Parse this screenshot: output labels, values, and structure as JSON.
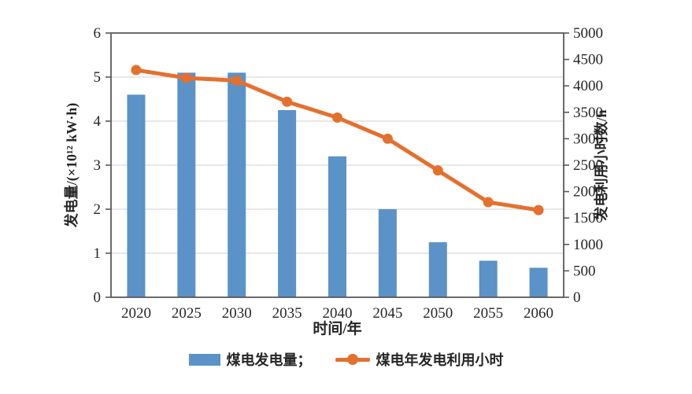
{
  "chart_data": {
    "type": "combo",
    "title": "",
    "categories": [
      "2020",
      "2025",
      "2030",
      "2035",
      "2040",
      "2045",
      "2050",
      "2055",
      "2060"
    ],
    "series": [
      {
        "name": "煤电发电量",
        "type": "bar",
        "axis": "left",
        "values": [
          4.6,
          5.1,
          5.1,
          4.25,
          3.2,
          2.0,
          1.25,
          0.83,
          0.67
        ]
      },
      {
        "name": "煤电年发电利用小时",
        "type": "line",
        "axis": "right",
        "values": [
          4300,
          4150,
          4100,
          3700,
          3400,
          3000,
          2400,
          1800,
          1650
        ]
      }
    ],
    "xlabel": "时间/年",
    "left_axis": {
      "label": "发电量/(×10¹² kW·h)",
      "min": 0,
      "max": 6,
      "ticks": [
        0,
        1,
        2,
        3,
        4,
        5,
        6
      ]
    },
    "right_axis": {
      "label": "发电利用小时数/h",
      "min": 0,
      "max": 5000,
      "ticks": [
        0,
        500,
        1000,
        1500,
        2000,
        2500,
        3000,
        3500,
        4000,
        4500,
        5000
      ]
    },
    "legend": [
      {
        "label": "煤电发电量；",
        "marker": "bar-swatch"
      },
      {
        "label": "煤电年发电利用小时",
        "marker": "line-dot"
      }
    ],
    "legend_position": "bottom-center",
    "grid": "horizontal",
    "colors": {
      "bar": "#5b92c8",
      "line": "#e4702e",
      "grid": "#d9d9d9",
      "axis": "#595959",
      "text": "#262626",
      "background": "#ffffff"
    }
  }
}
